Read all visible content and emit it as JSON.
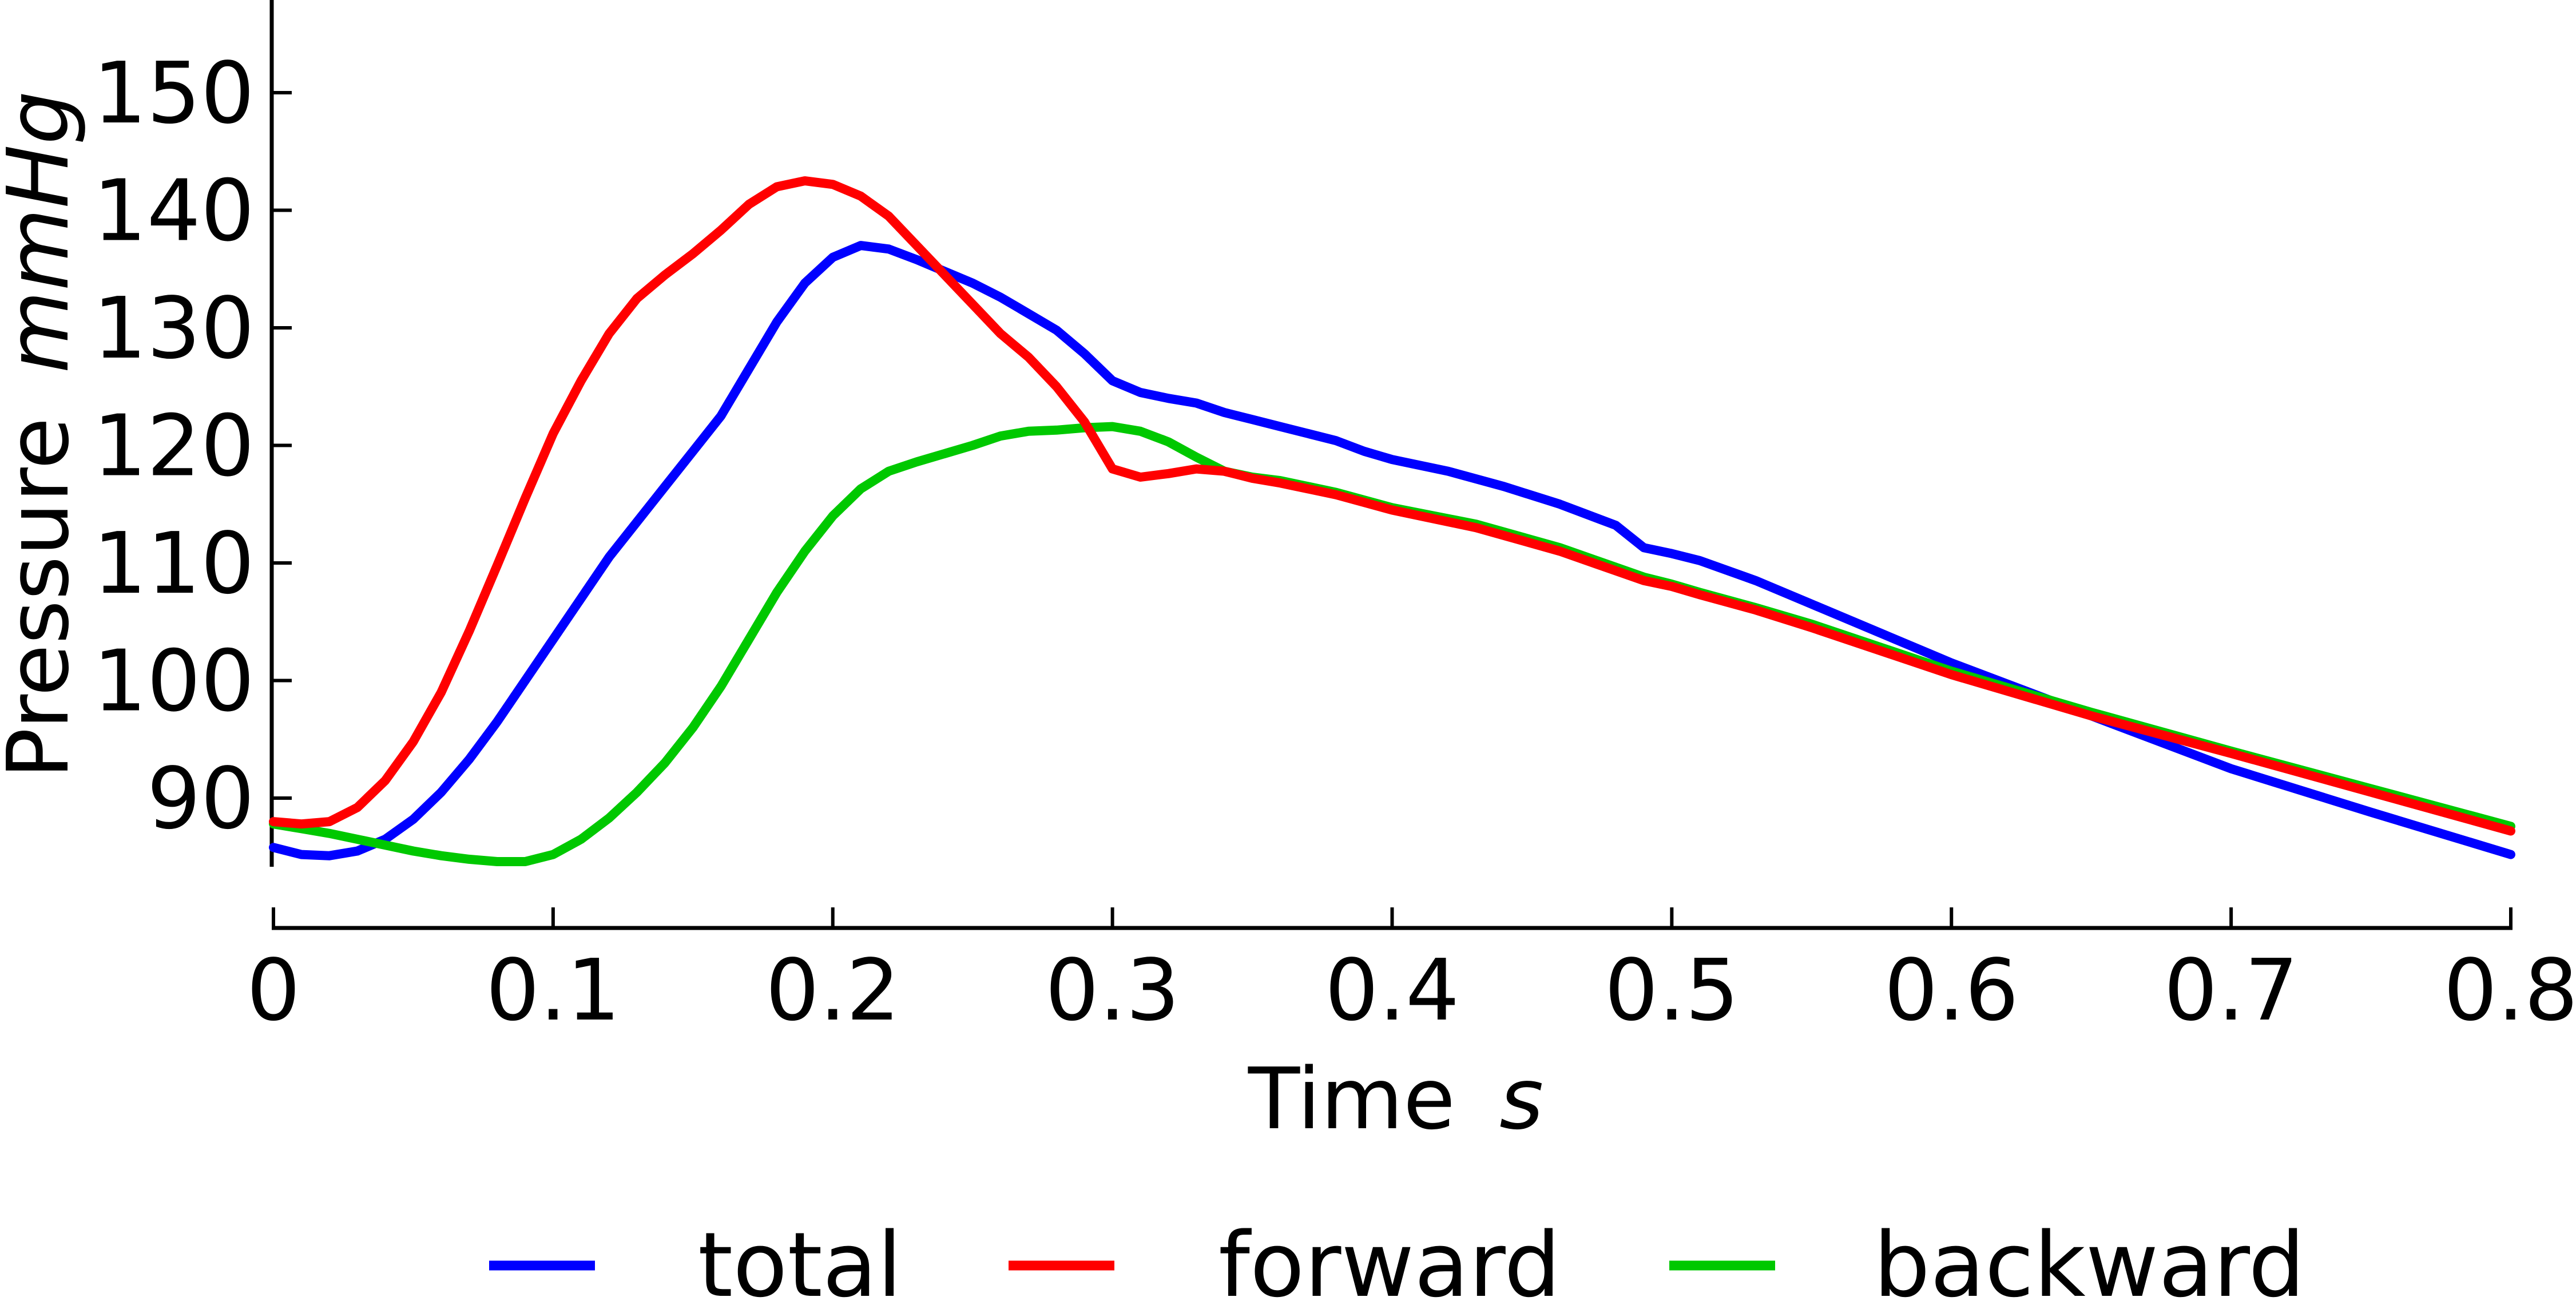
{
  "chart_data": {
    "type": "line",
    "xlabel": "Time",
    "xlabel_unit": "s",
    "ylabel": "Pressure",
    "ylabel_unit": "mmHg",
    "xlim": [
      0,
      0.8
    ],
    "ylim": [
      84,
      157
    ],
    "x_ticks": [
      0,
      0.1,
      0.2,
      0.3,
      0.4,
      0.5,
      0.6,
      0.7,
      0.8
    ],
    "x_tick_labels": [
      "0",
      "0.1",
      "0.2",
      "0.3",
      "0.4",
      "0.5",
      "0.6",
      "0.7",
      "0.8"
    ],
    "y_ticks": [
      90,
      100,
      110,
      120,
      130,
      140,
      150
    ],
    "y_tick_labels": [
      "90",
      "100",
      "110",
      "120",
      "130",
      "140",
      "150"
    ],
    "grid": false,
    "legend_position": "bottom",
    "series": [
      {
        "name": "total",
        "color": "#0000ff",
        "x": [
          0,
          0.01,
          0.02,
          0.03,
          0.04,
          0.05,
          0.06,
          0.07,
          0.08,
          0.09,
          0.1,
          0.11,
          0.12,
          0.13,
          0.14,
          0.15,
          0.16,
          0.17,
          0.18,
          0.19,
          0.2,
          0.21,
          0.22,
          0.23,
          0.24,
          0.25,
          0.26,
          0.27,
          0.28,
          0.29,
          0.3,
          0.31,
          0.32,
          0.33,
          0.34,
          0.35,
          0.36,
          0.37,
          0.38,
          0.39,
          0.4,
          0.42,
          0.44,
          0.46,
          0.48,
          0.49,
          0.5,
          0.51,
          0.53,
          0.55,
          0.6,
          0.65,
          0.7,
          0.75,
          0.8
        ],
        "values": [
          85.8,
          85.2,
          85.1,
          85.5,
          86.5,
          88.2,
          90.5,
          93.3,
          96.5,
          100.0,
          103.5,
          107.0,
          110.5,
          113.5,
          116.5,
          119.5,
          122.5,
          126.5,
          130.5,
          133.8,
          136.0,
          137.0,
          136.7,
          135.8,
          134.8,
          133.8,
          132.6,
          131.2,
          129.8,
          127.8,
          125.5,
          124.5,
          124.0,
          123.6,
          122.8,
          122.2,
          121.6,
          121.0,
          120.4,
          119.5,
          118.8,
          117.8,
          116.5,
          115.0,
          113.2,
          111.3,
          110.8,
          110.2,
          108.5,
          106.5,
          101.5,
          97.0,
          92.5,
          88.8,
          85.2
        ]
      },
      {
        "name": "forward",
        "color": "#ff0000",
        "x": [
          0,
          0.01,
          0.02,
          0.03,
          0.04,
          0.05,
          0.06,
          0.07,
          0.08,
          0.09,
          0.1,
          0.11,
          0.12,
          0.13,
          0.14,
          0.15,
          0.16,
          0.17,
          0.18,
          0.19,
          0.2,
          0.21,
          0.22,
          0.23,
          0.24,
          0.25,
          0.26,
          0.27,
          0.28,
          0.29,
          0.3,
          0.31,
          0.32,
          0.33,
          0.34,
          0.35,
          0.36,
          0.38,
          0.4,
          0.43,
          0.46,
          0.49,
          0.5,
          0.51,
          0.53,
          0.55,
          0.6,
          0.65,
          0.7,
          0.75,
          0.8
        ],
        "values": [
          88.0,
          87.8,
          88.0,
          89.2,
          91.5,
          94.8,
          99.0,
          104.2,
          109.8,
          115.5,
          121.0,
          125.5,
          129.5,
          132.5,
          134.5,
          136.3,
          138.3,
          140.5,
          142.0,
          142.5,
          142.2,
          141.2,
          139.5,
          137.0,
          134.5,
          132.0,
          129.5,
          127.5,
          125.0,
          122.0,
          118.0,
          117.3,
          117.6,
          118.0,
          117.8,
          117.2,
          116.8,
          115.8,
          114.5,
          113.0,
          111.0,
          108.5,
          108.0,
          107.3,
          106.0,
          104.5,
          100.5,
          97.0,
          93.8,
          90.5,
          87.2
        ]
      },
      {
        "name": "backward",
        "color": "#00c800",
        "x": [
          0,
          0.01,
          0.02,
          0.03,
          0.04,
          0.05,
          0.06,
          0.07,
          0.08,
          0.09,
          0.1,
          0.11,
          0.12,
          0.13,
          0.14,
          0.15,
          0.16,
          0.17,
          0.18,
          0.19,
          0.2,
          0.21,
          0.22,
          0.23,
          0.24,
          0.25,
          0.26,
          0.27,
          0.28,
          0.29,
          0.3,
          0.31,
          0.32,
          0.33,
          0.34,
          0.35,
          0.36,
          0.38,
          0.4,
          0.43,
          0.46,
          0.49,
          0.5,
          0.51,
          0.53,
          0.55,
          0.6,
          0.65,
          0.7,
          0.75,
          0.8
        ],
        "values": [
          87.8,
          87.4,
          87.0,
          86.5,
          86.0,
          85.5,
          85.1,
          84.8,
          84.6,
          84.6,
          85.2,
          86.5,
          88.3,
          90.5,
          93.0,
          96.0,
          99.5,
          103.5,
          107.5,
          111.0,
          114.0,
          116.3,
          117.8,
          118.6,
          119.3,
          120.0,
          120.8,
          121.2,
          121.3,
          121.5,
          121.6,
          121.2,
          120.3,
          119.0,
          117.8,
          117.3,
          117.0,
          116.0,
          114.7,
          113.3,
          111.3,
          108.8,
          108.2,
          107.5,
          106.2,
          104.8,
          100.8,
          97.3,
          94.0,
          90.8,
          87.6
        ]
      }
    ]
  }
}
